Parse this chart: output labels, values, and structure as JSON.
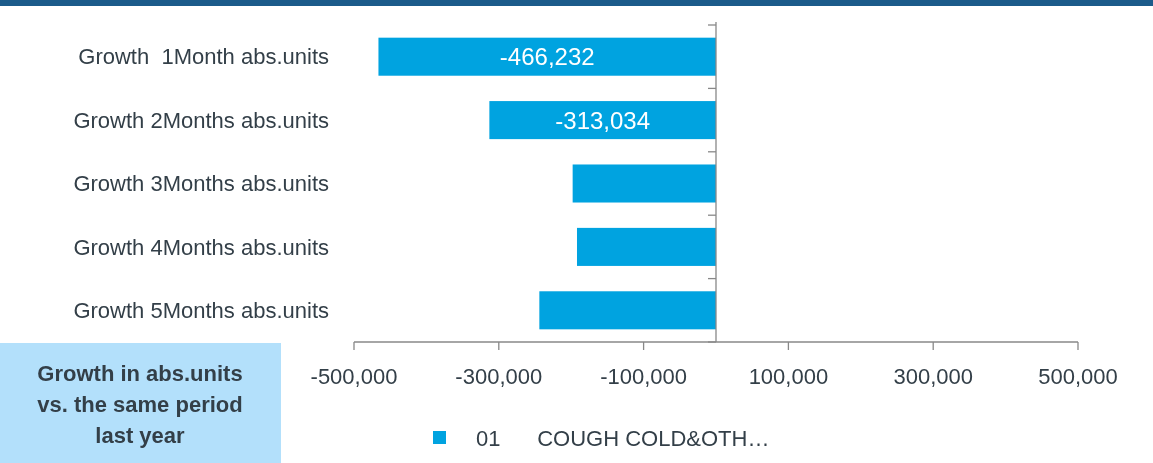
{
  "chart_data": {
    "type": "bar",
    "orientation": "horizontal",
    "title": "Growth in abs.units vs. the same period last year",
    "categories": [
      "Growth  1Month abs.units",
      "Growth 2Months abs.units",
      "Growth 3Months abs.units",
      "Growth 4Months abs.units",
      "Growth 5Months abs.units"
    ],
    "series": [
      {
        "name": "01      COUGH COLD&OTH…",
        "color": "#00a3e0",
        "values": [
          -466232,
          -313034,
          -198000,
          -192000,
          -244000
        ],
        "value_labels": [
          "-466,232",
          "-313,034",
          null,
          null,
          null
        ]
      }
    ],
    "xlim": [
      -500000,
      500000
    ],
    "xticks": [
      {
        "value": -500000,
        "label": "-500,000"
      },
      {
        "value": -300000,
        "label": "-300,000"
      },
      {
        "value": -100000,
        "label": "-100,000"
      },
      {
        "value": 100000,
        "label": "100,000"
      },
      {
        "value": 300000,
        "label": "300,000"
      },
      {
        "value": 500000,
        "label": "500,000"
      }
    ],
    "legend": "bottom"
  }
}
